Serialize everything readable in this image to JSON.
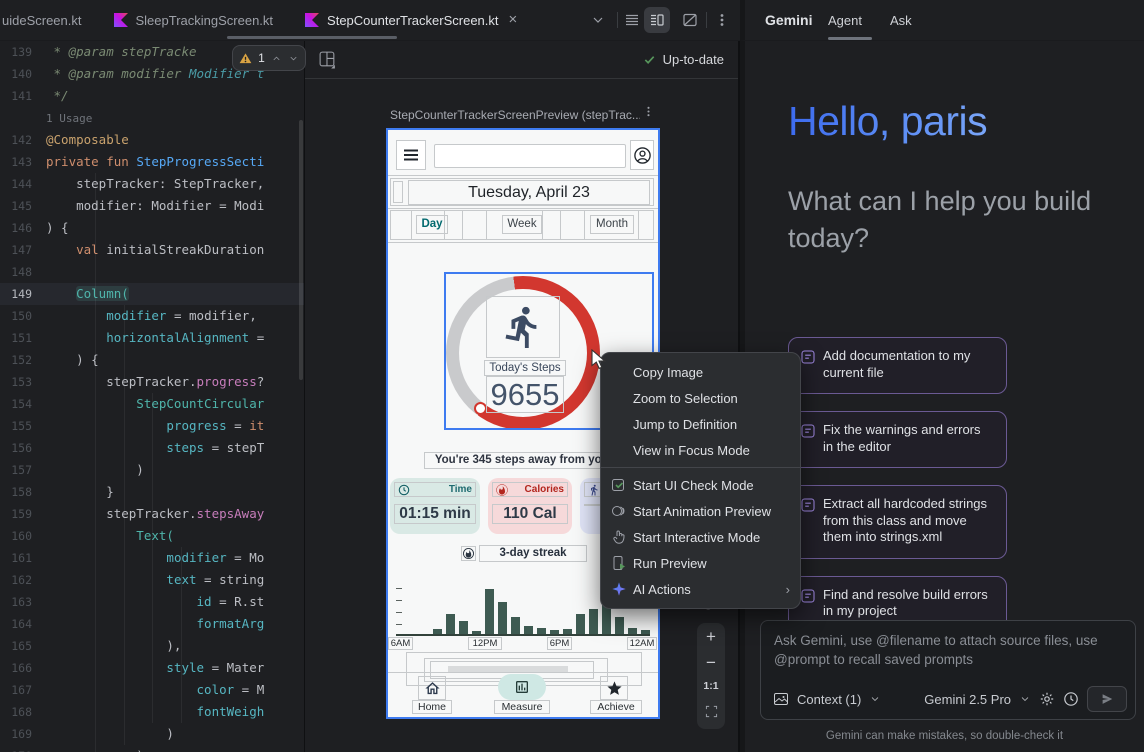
{
  "colors": {
    "accent_blue": "#3E7BF0",
    "progress_red": "#D2372F",
    "gemini_blue": "#4C7FEF",
    "suggestion_border_purple": "#6B5A94",
    "status_green": "#57965C",
    "bar_green": "#3E5B52"
  },
  "editor": {
    "tabs": [
      {
        "label": "uideScreen.kt"
      },
      {
        "label": "SleepTrackingScreen.kt",
        "icon": true
      },
      {
        "label": "StepCounterTrackerScreen.kt",
        "icon": true,
        "active": true,
        "close": true
      }
    ],
    "inspection": {
      "warning_count": "1"
    },
    "lines": [
      {
        "no": "139",
        "tokens": [
          [
            "com",
            " * @param stepTracke"
          ]
        ]
      },
      {
        "no": "140",
        "tokens": [
          [
            "com",
            " * @param modifier "
          ],
          [
            "comlink",
            "Modifier t"
          ]
        ]
      },
      {
        "no": "141",
        "tokens": [
          [
            "com",
            " */"
          ]
        ]
      },
      {
        "no": "",
        "tokens": [
          [
            "inlay",
            "1 Usage"
          ]
        ]
      },
      {
        "no": "142",
        "tokens": [
          [
            "ann",
            "@Composable"
          ]
        ]
      },
      {
        "no": "143",
        "tokens": [
          [
            "kw",
            "private fun "
          ],
          [
            "fn",
            "StepProgressSecti"
          ]
        ]
      },
      {
        "no": "144",
        "tokens": [
          [
            "def",
            "    stepTracker: StepTracker,"
          ]
        ]
      },
      {
        "no": "145",
        "tokens": [
          [
            "def",
            "    modifier: Modifier = Modi"
          ]
        ]
      },
      {
        "no": "146",
        "tokens": [
          [
            "def",
            ") {"
          ]
        ]
      },
      {
        "no": "147",
        "tokens": [
          [
            "kw",
            "    val "
          ],
          [
            "def",
            "initialStreakDuration"
          ]
        ]
      },
      {
        "no": "148",
        "tokens": []
      },
      {
        "no": "149",
        "current": true,
        "tokens": [
          [
            "def",
            "    "
          ],
          [
            "callhl",
            "Column("
          ]
        ]
      },
      {
        "no": "150",
        "tokens": [
          [
            "def",
            "        "
          ],
          [
            "named",
            "modifier"
          ],
          [
            "def",
            " = modifier,"
          ]
        ]
      },
      {
        "no": "151",
        "tokens": [
          [
            "def",
            "        "
          ],
          [
            "named",
            "horizontalAlignment"
          ],
          [
            "def",
            " ="
          ]
        ]
      },
      {
        "no": "152",
        "tokens": [
          [
            "def",
            "    ) {"
          ]
        ]
      },
      {
        "no": "153",
        "tokens": [
          [
            "def",
            "        stepTracker."
          ],
          [
            "prop",
            "progress"
          ],
          [
            "def",
            "?"
          ]
        ]
      },
      {
        "no": "154",
        "tokens": [
          [
            "call",
            "            StepCountCircular"
          ]
        ]
      },
      {
        "no": "155",
        "tokens": [
          [
            "def",
            "                "
          ],
          [
            "named",
            "progress"
          ],
          [
            "def",
            " = "
          ],
          [
            "kw",
            "it"
          ]
        ]
      },
      {
        "no": "156",
        "tokens": [
          [
            "def",
            "                "
          ],
          [
            "named",
            "steps"
          ],
          [
            "def",
            " = stepT"
          ]
        ]
      },
      {
        "no": "157",
        "tokens": [
          [
            "def",
            "            )"
          ]
        ]
      },
      {
        "no": "158",
        "tokens": [
          [
            "def",
            "        }"
          ]
        ]
      },
      {
        "no": "159",
        "tokens": [
          [
            "def",
            "        stepTracker."
          ],
          [
            "prop",
            "stepsAway"
          ]
        ]
      },
      {
        "no": "160",
        "tokens": [
          [
            "call",
            "            Text("
          ]
        ]
      },
      {
        "no": "161",
        "tokens": [
          [
            "def",
            "                "
          ],
          [
            "named",
            "modifier"
          ],
          [
            "def",
            " = Mo"
          ]
        ]
      },
      {
        "no": "162",
        "tokens": [
          [
            "def",
            "                "
          ],
          [
            "named",
            "text"
          ],
          [
            "def",
            " = string"
          ]
        ]
      },
      {
        "no": "163",
        "tokens": [
          [
            "def",
            "                    "
          ],
          [
            "named",
            "id"
          ],
          [
            "def",
            " = R.st"
          ]
        ]
      },
      {
        "no": "164",
        "tokens": [
          [
            "def",
            "                    "
          ],
          [
            "named",
            "formatArg"
          ]
        ]
      },
      {
        "no": "165",
        "tokens": [
          [
            "def",
            "                ),"
          ]
        ]
      },
      {
        "no": "166",
        "tokens": [
          [
            "def",
            "                "
          ],
          [
            "named",
            "style"
          ],
          [
            "def",
            " = Mater"
          ]
        ]
      },
      {
        "no": "167",
        "tokens": [
          [
            "def",
            "                    "
          ],
          [
            "named",
            "color"
          ],
          [
            "def",
            " = M"
          ]
        ]
      },
      {
        "no": "168",
        "tokens": [
          [
            "def",
            "                    "
          ],
          [
            "named",
            "fontWeigh"
          ]
        ]
      },
      {
        "no": "169",
        "tokens": [
          [
            "def",
            "                )"
          ]
        ]
      },
      {
        "no": "170",
        "tokens": [
          [
            "def",
            "            )"
          ]
        ]
      }
    ]
  },
  "preview": {
    "status": "Up-to-date",
    "title": "StepCounterTrackerScreenPreview (stepTrac...",
    "zoom_reset": "1:1",
    "app": {
      "date": "Tuesday, April 23",
      "periods": [
        "Day",
        "Week",
        "Month"
      ],
      "steps_label": "Today's Steps",
      "steps_value": "9655",
      "steps_away": "You're 345 steps away from your",
      "cards": [
        {
          "label": "Time",
          "value": "01:15 min"
        },
        {
          "label": "Calories",
          "value": "110 Cal"
        },
        {
          "label": "",
          "value": ""
        }
      ],
      "streak": "3-day streak",
      "nav": [
        {
          "label": "Home"
        },
        {
          "label": "Measure",
          "active": true
        },
        {
          "label": "Achieve"
        }
      ]
    }
  },
  "context_menu": {
    "items": [
      {
        "label": "Copy Image"
      },
      {
        "label": "Zoom to Selection"
      },
      {
        "label": "Jump to Definition"
      },
      {
        "label": "View in Focus Mode"
      },
      {
        "divider": true
      },
      {
        "label": "Start UI Check Mode",
        "icon": "ui-check"
      },
      {
        "label": "Start Animation Preview",
        "icon": "animation"
      },
      {
        "label": "Start Interactive Mode",
        "icon": "interactive"
      },
      {
        "label": "Run Preview",
        "icon": "run-preview"
      },
      {
        "label": "AI Actions",
        "icon": "ai-actions",
        "submenu": true
      }
    ]
  },
  "gemini": {
    "header": {
      "title": "Gemini",
      "tabs": [
        "Agent",
        "Ask"
      ]
    },
    "greeting": "Hello, paris",
    "subtitle": "What can I help you build today?",
    "suggestions": [
      {
        "label": "Add documentation to my current file"
      },
      {
        "label": "Fix the warnings and errors in the editor"
      },
      {
        "label": "Extract all hardcoded strings from this class and move them into strings.xml"
      },
      {
        "label": "Find and resolve build errors in my project"
      }
    ],
    "input": {
      "placeholder": "Ask Gemini, use @filename to attach source files, use @prompt to recall saved prompts",
      "context_label": "Context (1)",
      "model_label": "Gemini 2.5 Pro"
    },
    "disclaimer": "Gemini can make mistakes, so double-check it"
  },
  "chart_data": {
    "type": "bar",
    "title": "",
    "xlabel": "",
    "ylabel": "",
    "x_labels": [
      "6AM",
      "12PM",
      "6PM",
      "12AM"
    ],
    "values": [
      5,
      20,
      13,
      3,
      45,
      32,
      17,
      8,
      6,
      4,
      5,
      20,
      25,
      32,
      17,
      6,
      4
    ],
    "ylim": [
      0,
      50
    ],
    "bar_color": "#3E5B52",
    "grid": false,
    "legend": false
  }
}
